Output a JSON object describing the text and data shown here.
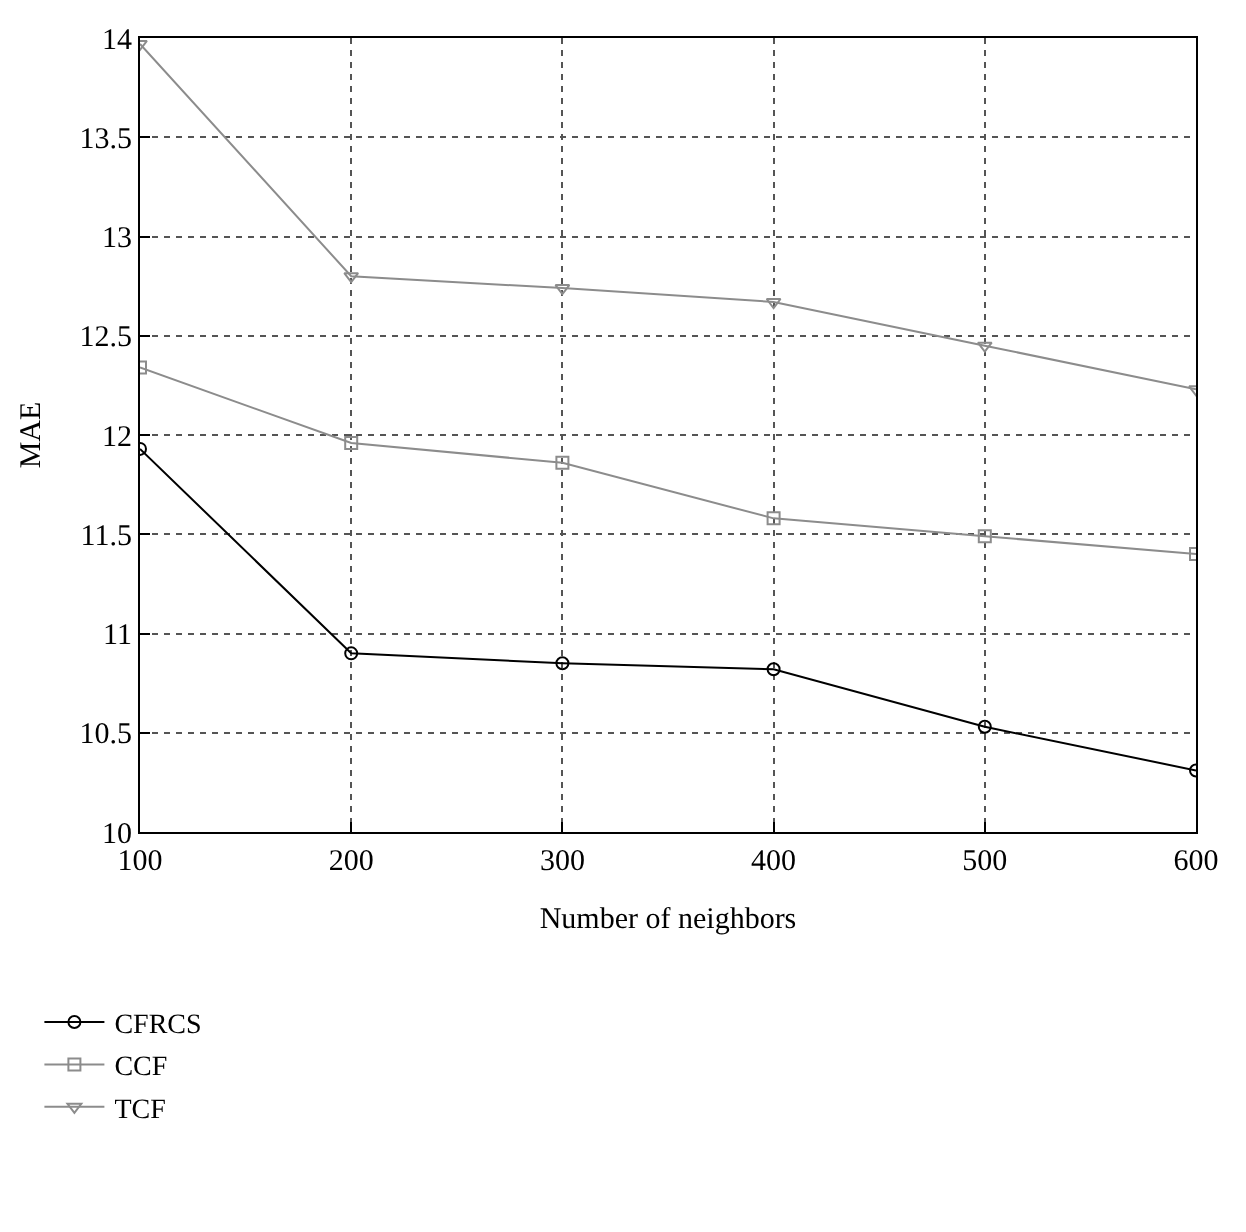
{
  "chart_data": {
    "type": "line",
    "xlabel": "Number of neighbors",
    "ylabel": "MAE",
    "x": [
      100,
      200,
      300,
      400,
      500,
      600
    ],
    "xlim": [
      100,
      600
    ],
    "xticks": [
      100,
      200,
      300,
      400,
      500,
      600
    ],
    "ylim": [
      10,
      14
    ],
    "yticks": [
      10,
      10.5,
      11,
      11.5,
      12,
      12.5,
      13,
      13.5,
      14
    ],
    "grid": true,
    "legend": "bottom left",
    "line_style": "solid",
    "series": [
      {
        "name": "CFRCS",
        "color": "#000000",
        "marker": "circle",
        "values": [
          11.93,
          10.9,
          10.85,
          10.82,
          10.53,
          10.31
        ]
      },
      {
        "name": "CCF",
        "color": "#8c8c8c",
        "marker": "square",
        "values": [
          12.34,
          11.96,
          11.86,
          11.58,
          11.49,
          11.4
        ]
      },
      {
        "name": "TCF",
        "color": "#8c8c8c",
        "marker": "triangle-down",
        "values": [
          13.97,
          12.8,
          12.74,
          12.67,
          12.45,
          12.23
        ]
      }
    ]
  }
}
